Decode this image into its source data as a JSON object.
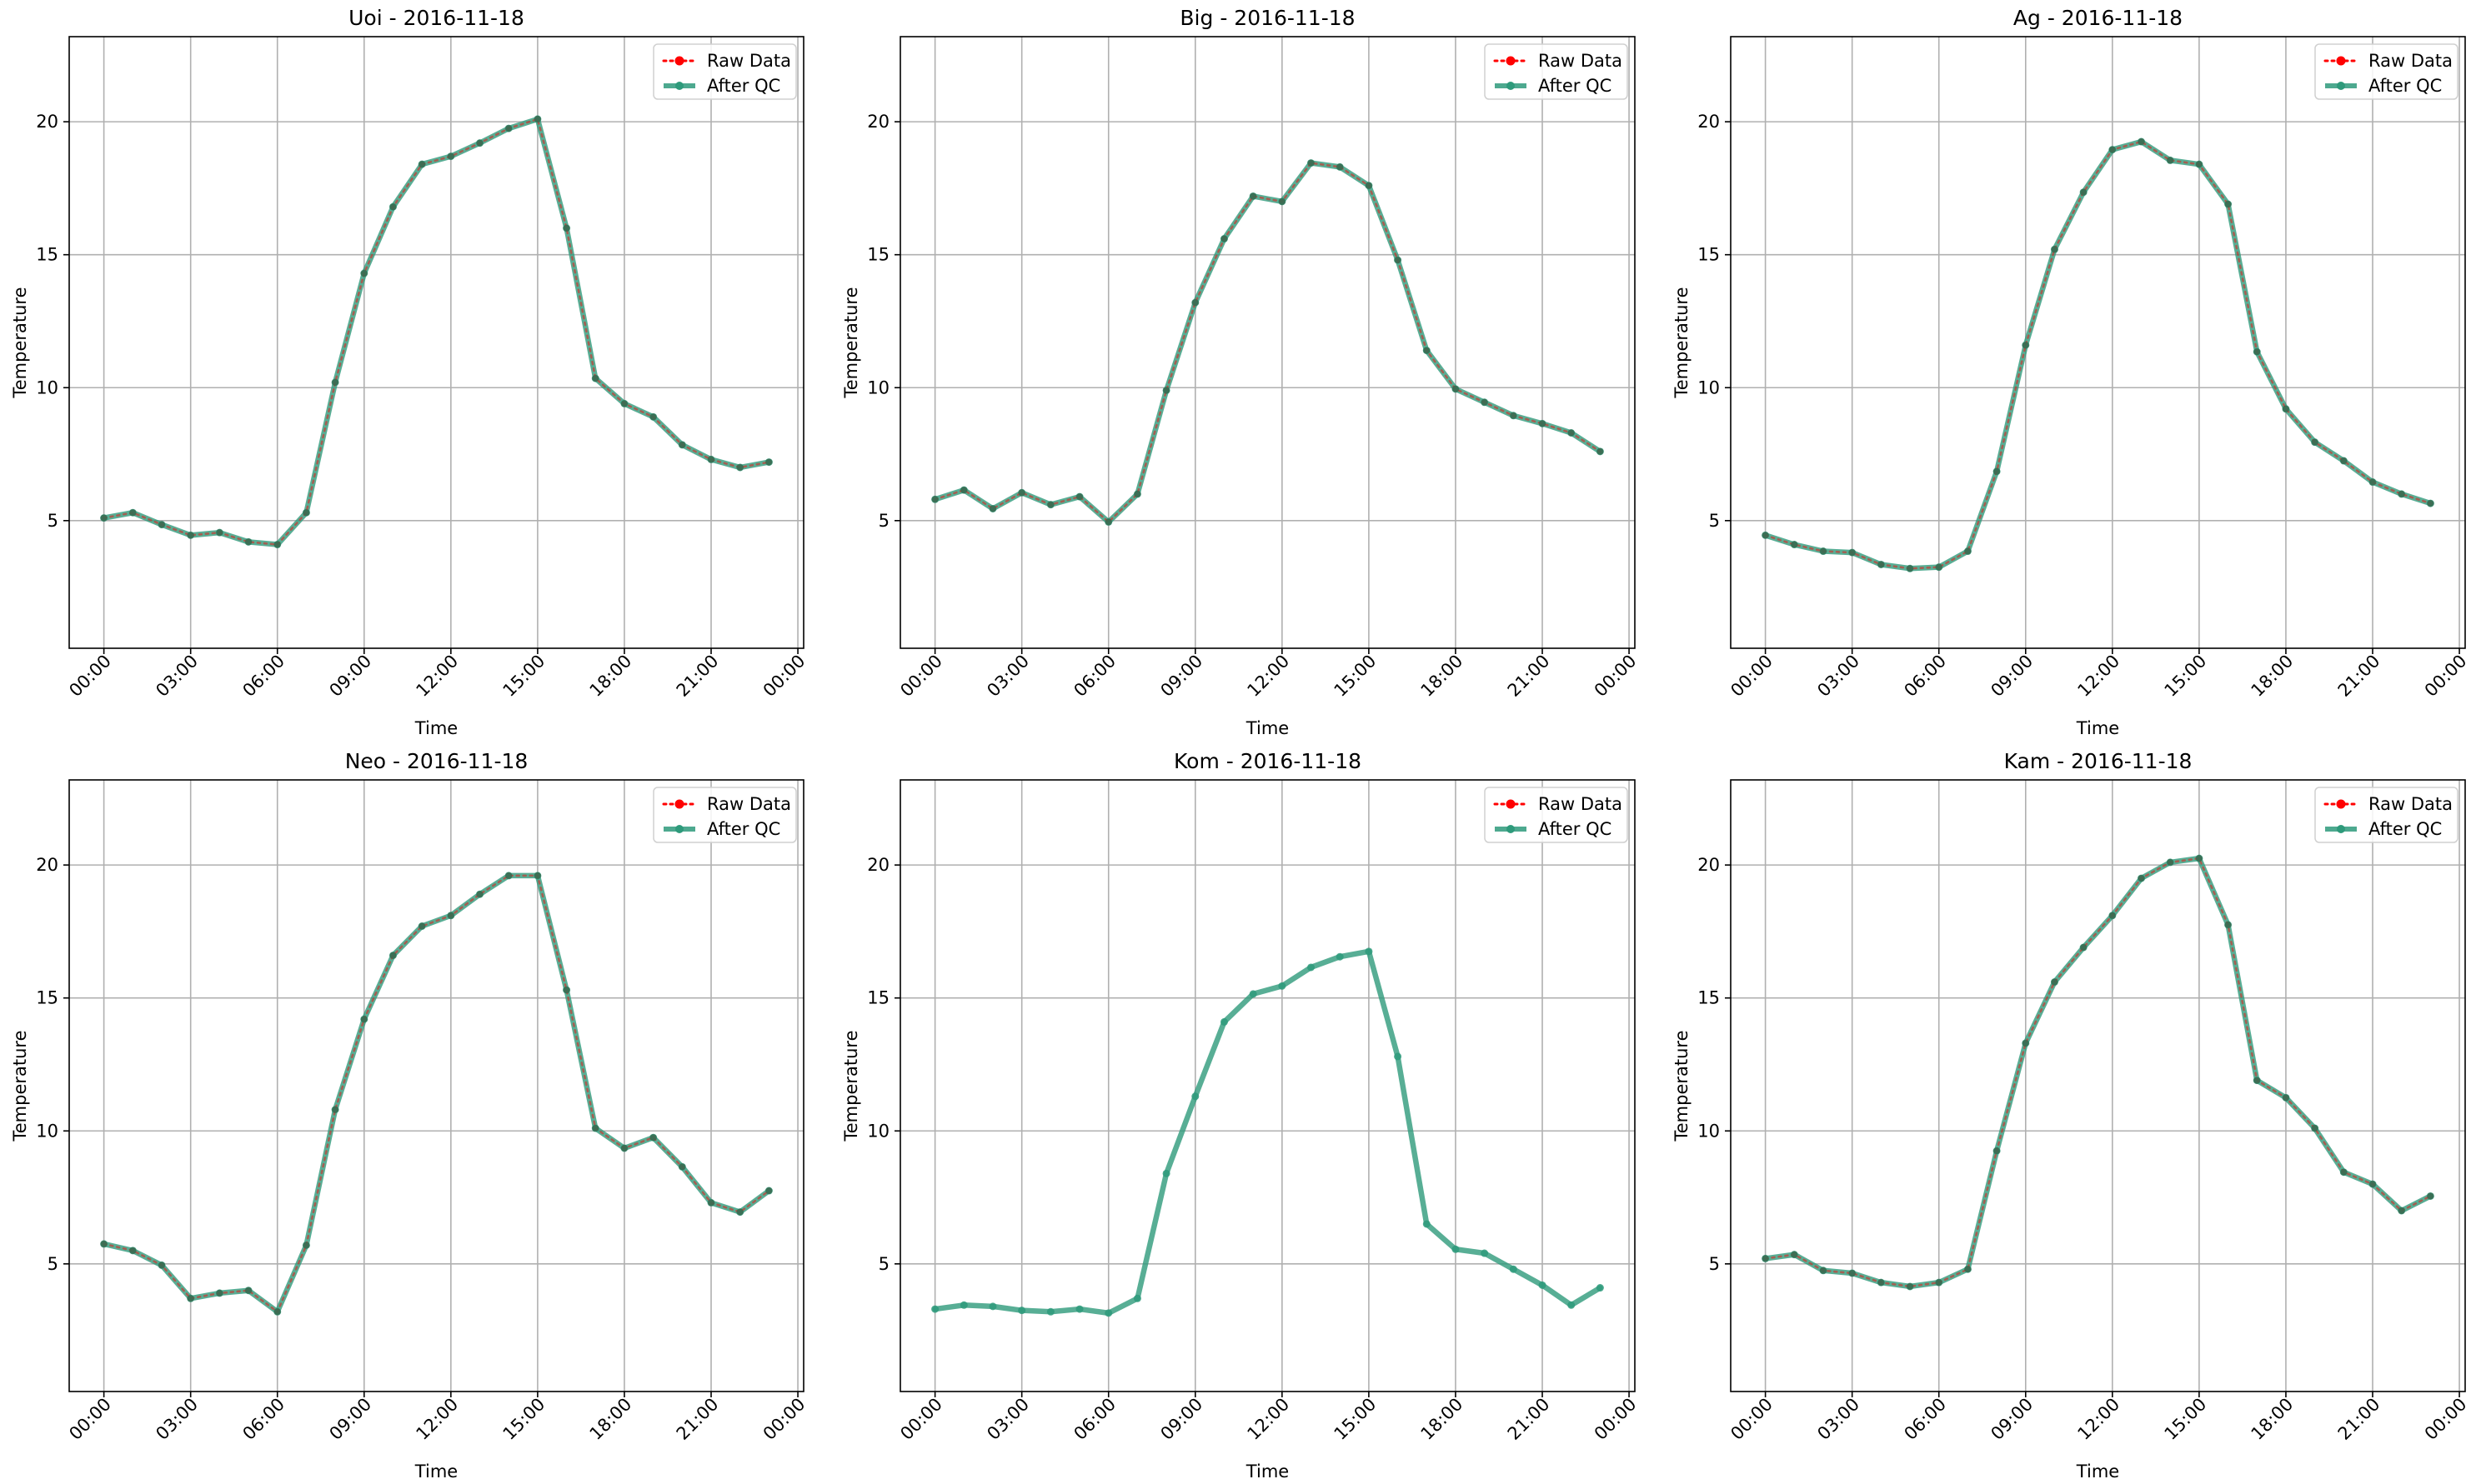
{
  "figure": {
    "background": "#ffffff",
    "raw_color": "#ff0000",
    "qc_color": "#2e9a7b",
    "grid_color": "#b0b0b0"
  },
  "chart_data": [
    {
      "type": "line",
      "title": "Uoi - 2016-11-18",
      "xlabel": "Time",
      "ylabel": "Temperature",
      "xticks": [
        "00:00",
        "03:00",
        "06:00",
        "09:00",
        "12:00",
        "15:00",
        "18:00",
        "21:00",
        "00:00"
      ],
      "yticks": [
        5,
        10,
        15,
        20
      ],
      "ylim": [
        0.2,
        23.2
      ],
      "xlim_hours": [
        -1.2,
        24.2
      ],
      "grid": true,
      "legend": "top-right",
      "x_hours": [
        0,
        1,
        2,
        3,
        4,
        5,
        6,
        7,
        8,
        9,
        10,
        11,
        12,
        13,
        14,
        15,
        16,
        17,
        18,
        19,
        20,
        21,
        22,
        23
      ],
      "series": [
        {
          "name": "Raw Data",
          "values": [
            5.1,
            5.3,
            4.85,
            4.45,
            4.55,
            4.2,
            4.1,
            5.3,
            10.2,
            14.3,
            16.8,
            18.4,
            18.7,
            19.2,
            19.75,
            20.1,
            16.0,
            10.35,
            9.4,
            8.9,
            7.85,
            7.3,
            7.0,
            7.2
          ]
        },
        {
          "name": "After QC",
          "values": [
            5.1,
            5.3,
            4.85,
            4.45,
            4.55,
            4.2,
            4.1,
            5.3,
            10.2,
            14.3,
            16.8,
            18.4,
            18.7,
            19.2,
            19.75,
            20.1,
            16.0,
            10.35,
            9.4,
            8.9,
            7.85,
            7.3,
            7.0,
            7.2
          ]
        }
      ]
    },
    {
      "type": "line",
      "title": "Big - 2016-11-18",
      "xlabel": "Time",
      "ylabel": "Temperature",
      "xticks": [
        "00:00",
        "03:00",
        "06:00",
        "09:00",
        "12:00",
        "15:00",
        "18:00",
        "21:00",
        "00:00"
      ],
      "yticks": [
        5,
        10,
        15,
        20
      ],
      "ylim": [
        0.2,
        23.2
      ],
      "xlim_hours": [
        -1.2,
        24.2
      ],
      "grid": true,
      "legend": "top-right",
      "x_hours": [
        0,
        1,
        2,
        3,
        4,
        5,
        6,
        7,
        8,
        9,
        10,
        11,
        12,
        13,
        14,
        15,
        16,
        17,
        18,
        19,
        20,
        21,
        22,
        23
      ],
      "series": [
        {
          "name": "Raw Data",
          "values": [
            5.8,
            6.15,
            5.45,
            6.05,
            5.6,
            5.9,
            4.95,
            6.0,
            9.9,
            13.2,
            15.6,
            17.2,
            17.0,
            18.45,
            18.3,
            17.6,
            14.8,
            11.4,
            9.95,
            9.45,
            8.95,
            8.65,
            8.3,
            7.6
          ]
        },
        {
          "name": "After QC",
          "values": [
            5.8,
            6.15,
            5.45,
            6.05,
            5.6,
            5.9,
            4.95,
            6.0,
            9.9,
            13.2,
            15.6,
            17.2,
            17.0,
            18.45,
            18.3,
            17.6,
            14.8,
            11.4,
            9.95,
            9.45,
            8.95,
            8.65,
            8.3,
            7.6
          ]
        }
      ]
    },
    {
      "type": "line",
      "title": "Ag - 2016-11-18",
      "xlabel": "Time",
      "ylabel": "Temperature",
      "xticks": [
        "00:00",
        "03:00",
        "06:00",
        "09:00",
        "12:00",
        "15:00",
        "18:00",
        "21:00",
        "00:00"
      ],
      "yticks": [
        5,
        10,
        15,
        20
      ],
      "ylim": [
        0.2,
        23.2
      ],
      "xlim_hours": [
        -1.2,
        24.2
      ],
      "grid": true,
      "legend": "top-right",
      "x_hours": [
        0,
        1,
        2,
        3,
        4,
        5,
        6,
        7,
        8,
        9,
        10,
        11,
        12,
        13,
        14,
        15,
        16,
        17,
        18,
        19,
        20,
        21,
        22,
        23
      ],
      "series": [
        {
          "name": "Raw Data",
          "values": [
            4.45,
            4.1,
            3.85,
            3.8,
            3.35,
            3.2,
            3.25,
            3.85,
            6.85,
            11.6,
            15.2,
            17.35,
            18.95,
            19.25,
            18.55,
            18.4,
            16.9,
            11.35,
            9.2,
            7.95,
            7.25,
            6.45,
            6.0,
            5.65
          ]
        },
        {
          "name": "After QC",
          "values": [
            4.45,
            4.1,
            3.85,
            3.8,
            3.35,
            3.2,
            3.25,
            3.85,
            6.85,
            11.6,
            15.2,
            17.35,
            18.95,
            19.25,
            18.55,
            18.4,
            16.9,
            11.35,
            9.2,
            7.95,
            7.25,
            6.45,
            6.0,
            5.65
          ]
        }
      ]
    },
    {
      "type": "line",
      "title": "Neo - 2016-11-18",
      "xlabel": "Time",
      "ylabel": "Temperature",
      "xticks": [
        "00:00",
        "03:00",
        "06:00",
        "09:00",
        "12:00",
        "15:00",
        "18:00",
        "21:00",
        "00:00"
      ],
      "yticks": [
        5,
        10,
        15,
        20
      ],
      "ylim": [
        0.2,
        23.2
      ],
      "xlim_hours": [
        -1.2,
        24.2
      ],
      "grid": true,
      "legend": "top-right",
      "x_hours": [
        0,
        1,
        2,
        3,
        4,
        5,
        6,
        7,
        8,
        9,
        10,
        11,
        12,
        13,
        14,
        15,
        16,
        17,
        18,
        19,
        20,
        21,
        22,
        23
      ],
      "series": [
        {
          "name": "Raw Data",
          "values": [
            5.75,
            5.5,
            4.95,
            3.7,
            3.9,
            4.0,
            3.2,
            5.7,
            10.8,
            14.2,
            16.6,
            17.7,
            18.1,
            18.9,
            19.6,
            19.6,
            15.3,
            10.1,
            9.35,
            9.75,
            8.65,
            7.3,
            6.95,
            7.75
          ]
        },
        {
          "name": "After QC",
          "values": [
            5.75,
            5.5,
            4.95,
            3.7,
            3.9,
            4.0,
            3.2,
            5.7,
            10.8,
            14.2,
            16.6,
            17.7,
            18.1,
            18.9,
            19.6,
            19.6,
            15.3,
            10.1,
            9.35,
            9.75,
            8.65,
            7.3,
            6.95,
            7.75
          ]
        }
      ]
    },
    {
      "type": "line",
      "title": "Kom - 2016-11-18",
      "xlabel": "Time",
      "ylabel": "Temperature",
      "xticks": [
        "00:00",
        "03:00",
        "06:00",
        "09:00",
        "12:00",
        "15:00",
        "18:00",
        "21:00",
        "00:00"
      ],
      "yticks": [
        5,
        10,
        15,
        20
      ],
      "ylim": [
        0.2,
        23.2
      ],
      "xlim_hours": [
        -1.2,
        24.2
      ],
      "grid": true,
      "legend": "top-right",
      "x_hours": [
        0,
        1,
        2,
        3,
        4,
        5,
        6,
        7,
        8,
        9,
        10,
        11,
        12,
        13,
        14,
        15,
        16,
        17,
        18,
        19,
        20,
        21,
        22,
        23
      ],
      "series": [
        {
          "name": "Raw Data",
          "values": []
        },
        {
          "name": "After QC",
          "values": [
            3.3,
            3.45,
            3.4,
            3.25,
            3.2,
            3.3,
            3.15,
            3.7,
            8.4,
            11.3,
            14.1,
            15.15,
            15.45,
            16.15,
            16.55,
            16.75,
            12.8,
            6.5,
            5.55,
            5.4,
            4.8,
            4.2,
            3.45,
            4.1
          ]
        }
      ]
    },
    {
      "type": "line",
      "title": "Kam - 2016-11-18",
      "xlabel": "Time",
      "ylabel": "Temperature",
      "xticks": [
        "00:00",
        "03:00",
        "06:00",
        "09:00",
        "12:00",
        "15:00",
        "18:00",
        "21:00",
        "00:00"
      ],
      "yticks": [
        5,
        10,
        15,
        20
      ],
      "ylim": [
        0.2,
        23.2
      ],
      "xlim_hours": [
        -1.2,
        24.2
      ],
      "grid": true,
      "legend": "top-right",
      "x_hours": [
        0,
        1,
        2,
        3,
        4,
        5,
        6,
        7,
        8,
        9,
        10,
        11,
        12,
        13,
        14,
        15,
        16,
        17,
        18,
        19,
        20,
        21,
        22,
        23
      ],
      "series": [
        {
          "name": "Raw Data",
          "values": [
            5.2,
            5.35,
            4.75,
            4.65,
            4.3,
            4.15,
            4.3,
            4.8,
            9.25,
            13.3,
            15.6,
            16.9,
            18.1,
            19.5,
            20.1,
            20.25,
            17.75,
            11.9,
            11.25,
            10.1,
            8.45,
            8.0,
            7.0,
            7.55
          ]
        },
        {
          "name": "After QC",
          "values": [
            5.2,
            5.35,
            4.75,
            4.65,
            4.3,
            4.15,
            4.3,
            4.8,
            9.25,
            13.3,
            15.6,
            16.9,
            18.1,
            19.5,
            20.1,
            20.25,
            17.75,
            11.9,
            11.25,
            10.1,
            8.45,
            8.0,
            7.0,
            7.55
          ]
        }
      ]
    }
  ]
}
